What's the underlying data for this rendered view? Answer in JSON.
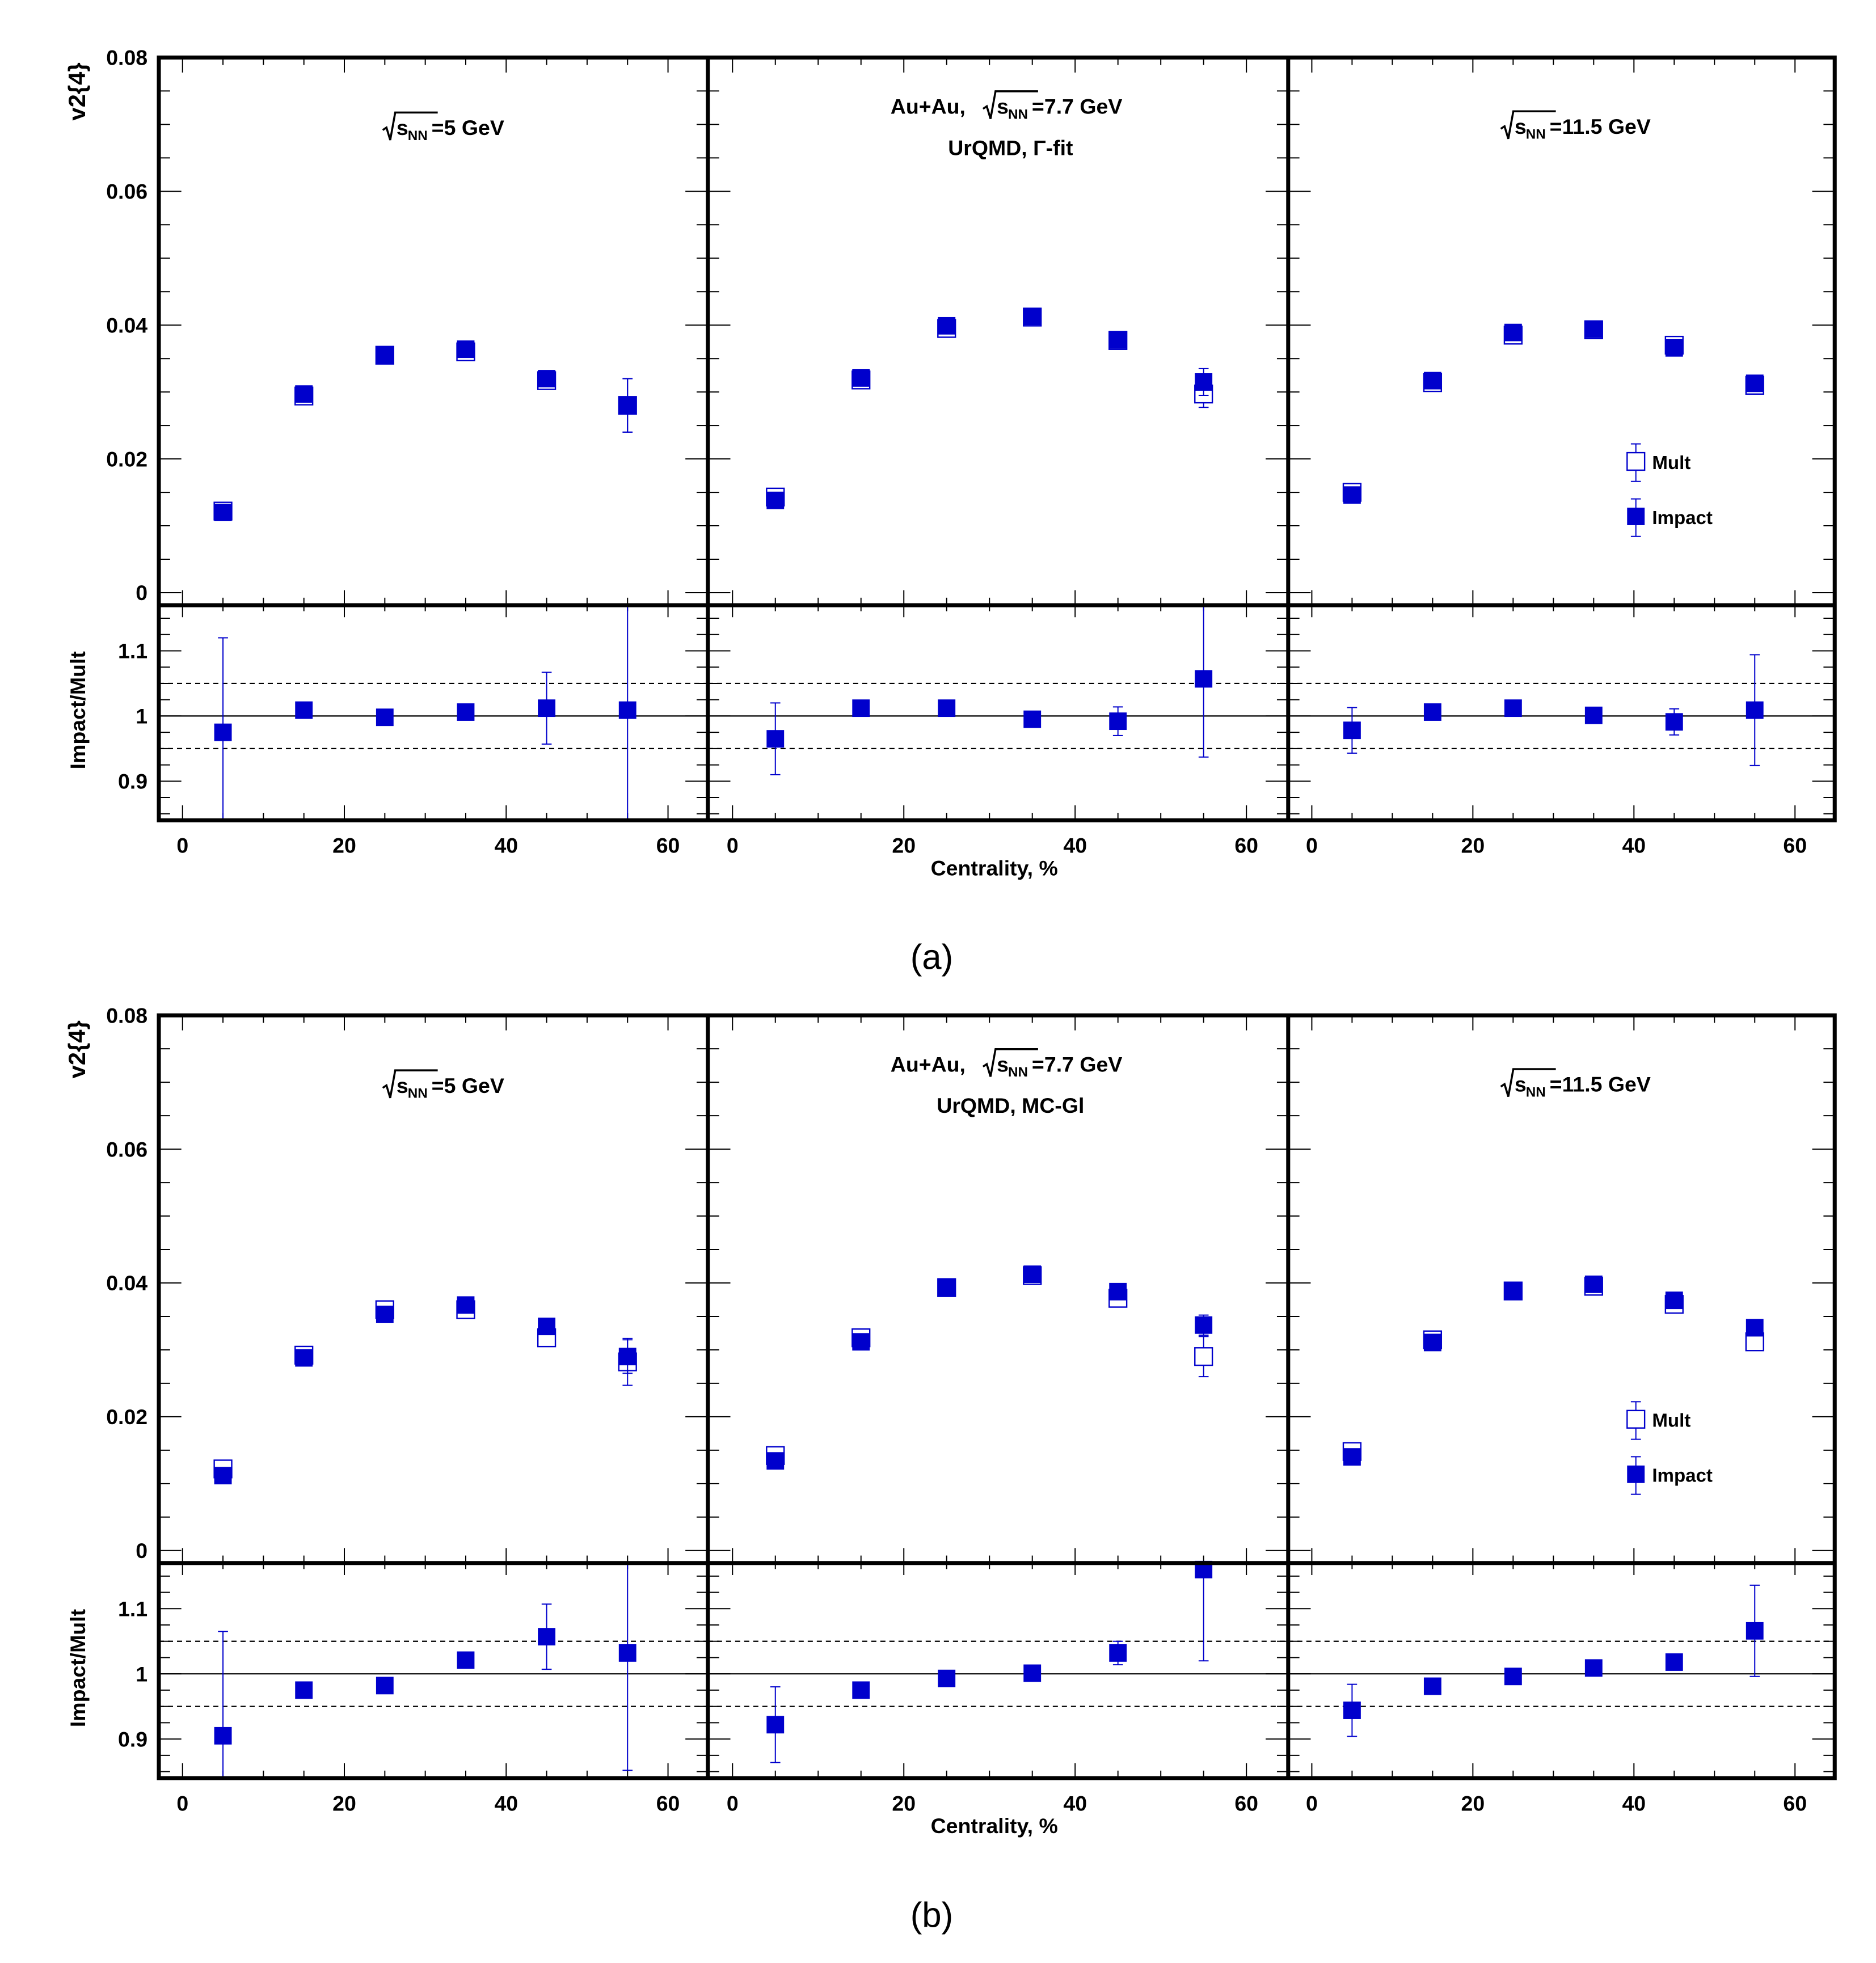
{
  "colors": {
    "marker": "#0000cc",
    "frame": "#000000",
    "line": "#000000"
  },
  "figure": {
    "panel_labels": [
      "(a)",
      "(b)"
    ],
    "y_label_top": "v2{4}",
    "y_label_bottom": "Impact/Mult",
    "x_label": "Centrality, %",
    "legend": {
      "mult": "Mult",
      "impact": "Impact"
    },
    "energies": [
      "5 GeV",
      "7.7 GeV",
      "11.5 GeV"
    ],
    "system": "Au+Au,",
    "model_a": "UrQMD, Γ-fit",
    "model_b": "UrQMD, MC-Gl",
    "x_ticks": [
      "0",
      "20",
      "40",
      "60"
    ],
    "y_ticks_top": [
      "0",
      "0.02",
      "0.04",
      "0.06",
      "0.08"
    ],
    "y_ticks_bottom": [
      "0.9",
      "1",
      "1.1"
    ]
  },
  "chart_data": [
    {
      "type": "scatter",
      "figure": "a",
      "panel": "sqrt(sNN)=5 GeV",
      "x": [
        5,
        15,
        25,
        35,
        45,
        55
      ],
      "xlim": [
        -2,
        64
      ],
      "ylim": [
        0,
        0.08
      ],
      "ratio_ylim": [
        0.84,
        1.17
      ],
      "xlabel": "Centrality, %",
      "ylabel": "v2{4}",
      "ratio_ylabel": "Impact/Mult",
      "series": [
        {
          "name": "Mult",
          "marker": "open-square",
          "values": [
            0.0122,
            0.0294,
            0.0355,
            0.036,
            0.0317,
            0.028
          ],
          "errors": [
            0.0006,
            0.0008,
            0.0006,
            0.0008,
            0.001,
            0.004
          ]
        },
        {
          "name": "Impact",
          "marker": "filled-square",
          "values": [
            0.012,
            0.0297,
            0.0355,
            0.0364,
            0.032,
            0.028
          ],
          "errors": [
            0.0006,
            0.0008,
            0.0006,
            0.0008,
            0.001,
            0.004
          ]
        }
      ],
      "ratio": {
        "values": [
          0.975,
          1.009,
          0.998,
          1.006,
          1.012,
          1.009
        ],
        "errors": [
          0.145,
          0.006,
          0.006,
          0.012,
          0.055,
          0.18
        ]
      },
      "reference_lines": [
        1.0,
        0.95,
        1.05
      ]
    },
    {
      "type": "scatter",
      "figure": "a",
      "panel": "Au+Au, sqrt(sNN)=7.7 GeV, UrQMD, Gamma-fit",
      "x": [
        5,
        15,
        25,
        35,
        45,
        55
      ],
      "xlim": [
        -2,
        64
      ],
      "ylim": [
        0,
        0.08
      ],
      "ratio_ylim": [
        0.84,
        1.17
      ],
      "xlabel": "Centrality, %",
      "ylabel": "v2{4}",
      "ratio_ylabel": "Impact/Mult",
      "series": [
        {
          "name": "Mult",
          "marker": "open-square",
          "values": [
            0.0143,
            0.0318,
            0.0395,
            0.0412,
            0.0377,
            0.0297
          ],
          "errors": [
            0.0006,
            0.0008,
            0.0006,
            0.0006,
            0.0008,
            0.002
          ]
        },
        {
          "name": "Impact",
          "marker": "filled-square",
          "values": [
            0.0138,
            0.0321,
            0.0399,
            0.0413,
            0.0378,
            0.0315
          ],
          "errors": [
            0.0006,
            0.0008,
            0.0006,
            0.0006,
            0.0008,
            0.002
          ]
        }
      ],
      "ratio": {
        "values": [
          0.965,
          1.012,
          1.012,
          0.995,
          0.992,
          1.057
        ],
        "errors": [
          0.055,
          0.006,
          0.006,
          0.006,
          0.022,
          0.12
        ]
      },
      "reference_lines": [
        1.0,
        0.95,
        1.05
      ]
    },
    {
      "type": "scatter",
      "figure": "a",
      "panel": "sqrt(sNN)=11.5 GeV",
      "x": [
        5,
        15,
        25,
        35,
        45,
        55
      ],
      "xlim": [
        -2,
        64
      ],
      "ylim": [
        0,
        0.08
      ],
      "ratio_ylim": [
        0.84,
        1.17
      ],
      "xlabel": "Centrality, %",
      "ylabel": "v2{4}",
      "ratio_ylabel": "Impact/Mult",
      "series": [
        {
          "name": "Mult",
          "marker": "open-square",
          "values": [
            0.015,
            0.0314,
            0.0385,
            0.0393,
            0.037,
            0.031
          ],
          "errors": [
            0.0006,
            0.0006,
            0.0006,
            0.0006,
            0.0008,
            0.0012
          ]
        },
        {
          "name": "Impact",
          "marker": "filled-square",
          "values": [
            0.0146,
            0.0317,
            0.0389,
            0.0394,
            0.0366,
            0.0313
          ],
          "errors": [
            0.0006,
            0.0006,
            0.0006,
            0.0006,
            0.0008,
            0.0012
          ]
        }
      ],
      "ratio": {
        "values": [
          0.978,
          1.006,
          1.012,
          1.001,
          0.991,
          1.009
        ],
        "errors": [
          0.035,
          0.006,
          0.006,
          0.006,
          0.02,
          0.085
        ]
      },
      "reference_lines": [
        1.0,
        0.95,
        1.05
      ]
    },
    {
      "type": "scatter",
      "figure": "b",
      "panel": "sqrt(sNN)=5 GeV",
      "x": [
        5,
        15,
        25,
        35,
        45,
        55
      ],
      "xlim": [
        -2,
        64
      ],
      "ylim": [
        0,
        0.08
      ],
      "ratio_ylim": [
        0.84,
        1.17
      ],
      "xlabel": "Centrality, %",
      "ylabel": "v2{4}",
      "ratio_ylabel": "Impact/Mult",
      "series": [
        {
          "name": "Mult",
          "marker": "open-square",
          "values": [
            0.0122,
            0.0292,
            0.036,
            0.036,
            0.0318,
            0.0282
          ],
          "errors": [
            0.0008,
            0.0008,
            0.0006,
            0.0008,
            0.001,
            0.0035
          ]
        },
        {
          "name": "Impact",
          "marker": "filled-square",
          "values": [
            0.0112,
            0.0288,
            0.0353,
            0.0367,
            0.0335,
            0.029
          ],
          "errors": [
            0.0008,
            0.0008,
            0.0006,
            0.0008,
            0.001,
            0.0025
          ]
        }
      ],
      "ratio": {
        "values": [
          0.905,
          0.975,
          0.982,
          1.021,
          1.057,
          1.032
        ],
        "errors": [
          0.16,
          0.006,
          0.006,
          0.012,
          0.05,
          0.18
        ]
      },
      "reference_lines": [
        1.0,
        0.95,
        1.05
      ]
    },
    {
      "type": "scatter",
      "figure": "b",
      "panel": "Au+Au, sqrt(sNN)=7.7 GeV, UrQMD, MC-Gl",
      "x": [
        5,
        15,
        25,
        35,
        45,
        55
      ],
      "xlim": [
        -2,
        64
      ],
      "ylim": [
        0,
        0.08
      ],
      "ratio_ylim": [
        0.84,
        1.17
      ],
      "xlabel": "Centrality, %",
      "ylabel": "v2{4}",
      "ratio_ylabel": "Impact/Mult",
      "series": [
        {
          "name": "Mult",
          "marker": "open-square",
          "values": [
            0.0142,
            0.0318,
            0.0393,
            0.0411,
            0.0377,
            0.029
          ],
          "errors": [
            0.0006,
            0.0008,
            0.0006,
            0.0006,
            0.0008,
            0.003
          ]
        },
        {
          "name": "Impact",
          "marker": "filled-square",
          "values": [
            0.0134,
            0.0312,
            0.0394,
            0.0413,
            0.0387,
            0.0337
          ],
          "errors": [
            0.0006,
            0.0008,
            0.0006,
            0.0006,
            0.0008,
            0.0015
          ]
        }
      ],
      "ratio": {
        "values": [
          0.922,
          0.975,
          0.993,
          1.001,
          1.032,
          1.16
        ],
        "errors": [
          0.058,
          0.006,
          0.006,
          0.006,
          0.018,
          0.14
        ]
      },
      "reference_lines": [
        1.0,
        0.95,
        1.05
      ]
    },
    {
      "type": "scatter",
      "figure": "b",
      "panel": "sqrt(sNN)=11.5 GeV",
      "x": [
        5,
        15,
        25,
        35,
        45,
        55
      ],
      "xlim": [
        -2,
        64
      ],
      "ylim": [
        0,
        0.08
      ],
      "ratio_ylim": [
        0.84,
        1.17
      ],
      "xlabel": "Centrality, %",
      "ylabel": "v2{4}",
      "ratio_ylabel": "Impact/Mult",
      "series": [
        {
          "name": "Mult",
          "marker": "open-square",
          "values": [
            0.0148,
            0.0315,
            0.0388,
            0.0395,
            0.0368,
            0.0312
          ],
          "errors": [
            0.0006,
            0.0006,
            0.0006,
            0.0006,
            0.0008,
            0.0012
          ]
        },
        {
          "name": "Impact",
          "marker": "filled-square",
          "values": [
            0.014,
            0.0311,
            0.0388,
            0.0398,
            0.0374,
            0.0333
          ],
          "errors": [
            0.0006,
            0.0006,
            0.0006,
            0.0006,
            0.0008,
            0.0012
          ]
        }
      ],
      "ratio": {
        "values": [
          0.944,
          0.981,
          0.996,
          1.009,
          1.018,
          1.066
        ],
        "errors": [
          0.04,
          0.006,
          0.006,
          0.006,
          0.01,
          0.07
        ]
      },
      "reference_lines": [
        1.0,
        0.95,
        1.05
      ]
    }
  ]
}
